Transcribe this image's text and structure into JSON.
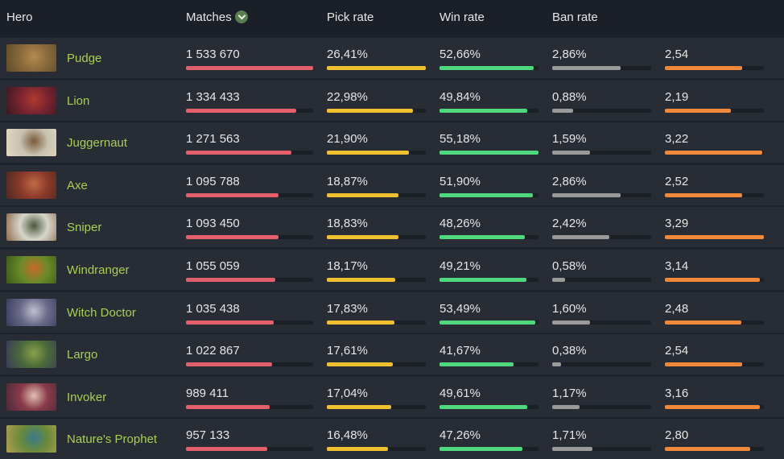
{
  "header": {
    "hero": "Hero",
    "matches": "Matches",
    "pick_rate": "Pick rate",
    "win_rate": "Win rate",
    "ban_rate": "Ban rate",
    "sort_icon": "chevron-down-icon"
  },
  "colors": {
    "matches": "#e5606c",
    "pick": "#f0c030",
    "win": "#4fd87e",
    "ban": "#9a9a9a",
    "kda": "#f08a3a",
    "hero_name": "#a9cf54"
  },
  "rows": [
    {
      "hero": "Pudge",
      "matches": "1 533 670",
      "pick": "26,41%",
      "win": "52,66%",
      "ban": "2,86%",
      "kda": "2,54",
      "matches_frac": 1.0,
      "pick_frac": 1.0,
      "win_frac": 0.95,
      "ban_frac": 0.69,
      "kda_frac": 0.78,
      "avatar": [
        "#8a6a3c",
        "#b48a50",
        "#5e4a2a"
      ]
    },
    {
      "hero": "Lion",
      "matches": "1 334 433",
      "pick": "22,98%",
      "win": "49,84%",
      "ban": "0,88%",
      "kda": "2,19",
      "matches_frac": 0.87,
      "pick_frac": 0.87,
      "win_frac": 0.89,
      "ban_frac": 0.21,
      "kda_frac": 0.67,
      "avatar": [
        "#7a2430",
        "#b03a2e",
        "#3a1a22"
      ]
    },
    {
      "hero": "Juggernaut",
      "matches": "1 271 563",
      "pick": "21,90%",
      "win": "55,18%",
      "ban": "1,59%",
      "kda": "3,22",
      "matches_frac": 0.83,
      "pick_frac": 0.83,
      "win_frac": 1.0,
      "ban_frac": 0.38,
      "kda_frac": 0.98,
      "avatar": [
        "#c8c2b0",
        "#7a5a3a",
        "#e2d8c4"
      ]
    },
    {
      "hero": "Axe",
      "matches": "1 095 788",
      "pick": "18,87%",
      "win": "51,90%",
      "ban": "2,86%",
      "kda": "2,52",
      "matches_frac": 0.73,
      "pick_frac": 0.72,
      "win_frac": 0.94,
      "ban_frac": 0.69,
      "kda_frac": 0.78,
      "avatar": [
        "#8c3a2a",
        "#c06a46",
        "#4a2a22"
      ]
    },
    {
      "hero": "Sniper",
      "matches": "1 093 450",
      "pick": "18,83%",
      "win": "48,26%",
      "ban": "2,42%",
      "kda": "3,29",
      "matches_frac": 0.73,
      "pick_frac": 0.72,
      "win_frac": 0.86,
      "ban_frac": 0.58,
      "kda_frac": 1.0,
      "avatar": [
        "#d8d6cc",
        "#4a5a3a",
        "#8a6a4a"
      ]
    },
    {
      "hero": "Windranger",
      "matches": "1 055 059",
      "pick": "18,17%",
      "win": "49,21%",
      "ban": "0,58%",
      "kda": "3,14",
      "matches_frac": 0.7,
      "pick_frac": 0.69,
      "win_frac": 0.88,
      "ban_frac": 0.13,
      "kda_frac": 0.96,
      "avatar": [
        "#6a8a2a",
        "#c86a2a",
        "#3a5a1a"
      ]
    },
    {
      "hero": "Witch Doctor",
      "matches": "1 035 438",
      "pick": "17,83%",
      "win": "53,49%",
      "ban": "1,60%",
      "kda": "2,48",
      "matches_frac": 0.69,
      "pick_frac": 0.68,
      "win_frac": 0.97,
      "ban_frac": 0.38,
      "kda_frac": 0.77,
      "avatar": [
        "#6a6a8a",
        "#c0c0d0",
        "#3a3a5a"
      ]
    },
    {
      "hero": "Largo",
      "matches": "1 022 867",
      "pick": "17,61%",
      "win": "41,67%",
      "ban": "0,38%",
      "kda": "2,54",
      "matches_frac": 0.68,
      "pick_frac": 0.67,
      "win_frac": 0.75,
      "ban_frac": 0.09,
      "kda_frac": 0.78,
      "avatar": [
        "#4a6a3a",
        "#8aa04a",
        "#3a3a5a"
      ]
    },
    {
      "hero": "Invoker",
      "matches": "989 411",
      "pick": "17,04%",
      "win": "49,61%",
      "ban": "1,17%",
      "kda": "3,16",
      "matches_frac": 0.66,
      "pick_frac": 0.65,
      "win_frac": 0.89,
      "ban_frac": 0.28,
      "kda_frac": 0.96,
      "avatar": [
        "#8a3a4a",
        "#e0c0b0",
        "#4a2a3a"
      ]
    },
    {
      "hero": "Nature's Prophet",
      "matches": "957 133",
      "pick": "16,48%",
      "win": "47,26%",
      "ban": "1,71%",
      "kda": "2,80",
      "matches_frac": 0.64,
      "pick_frac": 0.62,
      "win_frac": 0.84,
      "ban_frac": 0.41,
      "kda_frac": 0.86,
      "avatar": [
        "#6a8a3a",
        "#3a7a8a",
        "#b0a050"
      ]
    }
  ]
}
